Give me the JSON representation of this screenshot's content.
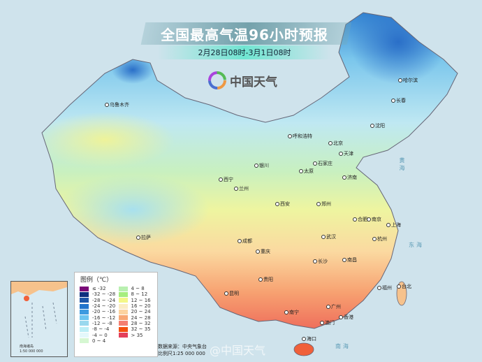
{
  "header": {
    "title": "全国最高气温96小时预报",
    "subtitle": "2月28日08时-3月1日08时"
  },
  "logo": {
    "text": "中国天气",
    "icon": "china-weather-swirl-logo"
  },
  "legend": {
    "title": "图例（℃）",
    "items": [
      {
        "label": "≤ -32",
        "color": "#7a0a78"
      },
      {
        "label": "-32 ~ -28",
        "color": "#0d2f7e"
      },
      {
        "label": "-28 ~ -24",
        "color": "#1f57a8"
      },
      {
        "label": "-24 ~ -20",
        "color": "#2375cc"
      },
      {
        "label": "-20 ~ -16",
        "color": "#3d9ae0"
      },
      {
        "label": "-16 ~ -12",
        "color": "#6cc4f0"
      },
      {
        "label": "-12 ~ -8",
        "color": "#9ad8ee"
      },
      {
        "label": "-8 ~ -4",
        "color": "#bdeef6"
      },
      {
        "label": "-4 ~ 0",
        "color": "#e4f8fb"
      },
      {
        "label": "0 ~ 4",
        "color": "#d6f7d2"
      },
      {
        "label": "4 ~ 8",
        "color": "#b9f0b0"
      },
      {
        "label": "8 ~ 12",
        "color": "#a6ee7e"
      },
      {
        "label": "12 ~ 16",
        "color": "#f4f788"
      },
      {
        "label": "16 ~ 20",
        "color": "#fbecc4"
      },
      {
        "label": "20 ~ 24",
        "color": "#fcd3a0"
      },
      {
        "label": "24 ~ 28",
        "color": "#f8a774"
      },
      {
        "label": "28 ~ 32",
        "color": "#f47f72"
      },
      {
        "label": "32 ~ 35",
        "color": "#f4500f"
      },
      {
        "label": "> 35",
        "color": "#e4405a"
      }
    ]
  },
  "source": {
    "line1": "数据来源：中央气象台",
    "line2": "比例尺1:25 000 000"
  },
  "inset": {
    "caption": "南海诸岛",
    "scale": "1:50 000 000",
    "sea": "南海"
  },
  "cities": [
    "乌鲁木齐",
    "哈尔滨",
    "长春",
    "沈阳",
    "呼和浩特",
    "北京",
    "天津",
    "石家庄",
    "太原",
    "济南",
    "银川",
    "西宁",
    "兰州",
    "西安",
    "郑州",
    "合肥",
    "南京",
    "上海",
    "杭州",
    "武汉",
    "成都",
    "重庆",
    "拉萨",
    "长沙",
    "南昌",
    "福州",
    "台北",
    "贵阳",
    "昆明",
    "南宁",
    "广州",
    "香港",
    "澳门",
    "海口"
  ],
  "seas": {
    "yellow": "黄海",
    "east": "东海",
    "south": "南海"
  },
  "watermark": "@中国天气"
}
